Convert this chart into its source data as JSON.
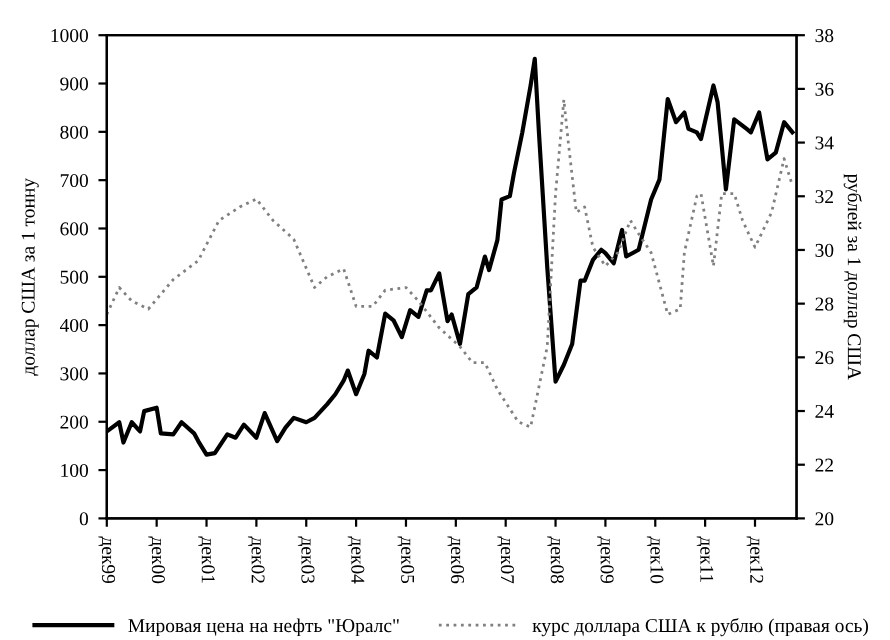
{
  "chart_data": {
    "type": "line",
    "ylabel": "доллар США за 1 тонну",
    "y2label": "рублей за 1 доллар США",
    "xlim": [
      "1999-12",
      "2013-10"
    ],
    "xticks": [
      {
        "value": "1999-12",
        "label": "дек99"
      },
      {
        "value": "2000-12",
        "label": "дек00"
      },
      {
        "value": "2001-12",
        "label": "дек01"
      },
      {
        "value": "2002-12",
        "label": "дек02"
      },
      {
        "value": "2003-12",
        "label": "дек03"
      },
      {
        "value": "2004-12",
        "label": "дек04"
      },
      {
        "value": "2005-12",
        "label": "дек05"
      },
      {
        "value": "2006-12",
        "label": "дек06"
      },
      {
        "value": "2007-12",
        "label": "дек07"
      },
      {
        "value": "2008-12",
        "label": "дек08"
      },
      {
        "value": "2009-12",
        "label": "дек09"
      },
      {
        "value": "2010-12",
        "label": "дек10"
      },
      {
        "value": "2011-12",
        "label": "дек11"
      },
      {
        "value": "2012-12",
        "label": "дек12"
      }
    ],
    "ylim": [
      0,
      1000
    ],
    "yticks": [
      0,
      100,
      200,
      300,
      400,
      500,
      600,
      700,
      800,
      900,
      1000
    ],
    "y2lim": [
      20,
      38
    ],
    "y2ticks": [
      20,
      22,
      24,
      26,
      28,
      30,
      32,
      34,
      36,
      38
    ],
    "grid": false,
    "legend": "bottom",
    "series": [
      {
        "name": "Мировая цена на нефть \"Юралс\"",
        "color": "#000000",
        "line_style": "solid",
        "x": [
          "1999-12",
          "2000-03",
          "2000-04",
          "2000-06",
          "2000-08",
          "2000-09",
          "2000-12",
          "2001-01",
          "2001-04",
          "2001-06",
          "2001-09",
          "2001-10",
          "2001-12",
          "2002-02",
          "2002-05",
          "2002-07",
          "2002-09",
          "2002-12",
          "2003-02",
          "2003-05",
          "2003-07",
          "2003-09",
          "2003-12",
          "2004-02",
          "2004-05",
          "2004-07",
          "2004-09",
          "2004-10",
          "2004-12",
          "2005-02",
          "2005-03",
          "2005-05",
          "2005-07",
          "2005-09",
          "2005-11",
          "2006-01",
          "2006-03",
          "2006-05",
          "2006-06",
          "2006-08",
          "2006-10",
          "2006-11",
          "2007-01",
          "2007-03",
          "2007-05",
          "2007-07",
          "2007-08",
          "2007-10",
          "2007-11",
          "2008-01",
          "2008-02",
          "2008-04",
          "2008-06",
          "2008-07",
          "2008-08",
          "2008-10",
          "2008-12",
          "2009-02",
          "2009-04",
          "2009-06",
          "2009-07",
          "2009-09",
          "2009-11",
          "2009-12",
          "2010-02",
          "2010-04",
          "2010-05",
          "2010-08",
          "2010-11",
          "2011-01",
          "2011-03",
          "2011-05",
          "2011-07",
          "2011-08",
          "2011-10",
          "2011-11",
          "2012-02",
          "2012-03",
          "2012-05",
          "2012-07",
          "2012-10",
          "2012-11",
          "2013-01",
          "2013-03",
          "2013-05",
          "2013-07",
          "2013-09"
        ],
        "values": [
          180,
          199,
          157,
          199,
          180,
          222,
          229,
          176,
          174,
          199,
          176,
          160,
          132,
          135,
          174,
          167,
          194,
          167,
          218,
          160,
          188,
          208,
          199,
          208,
          236,
          257,
          285,
          306,
          257,
          299,
          347,
          333,
          424,
          410,
          375,
          431,
          417,
          472,
          472,
          507,
          408,
          422,
          361,
          464,
          478,
          542,
          514,
          576,
          660,
          667,
          715,
          799,
          896,
          951,
          799,
          520,
          283,
          318,
          361,
          492,
          492,
          535,
          556,
          549,
          528,
          597,
          542,
          556,
          660,
          701,
          868,
          820,
          840,
          806,
          799,
          785,
          896,
          861,
          681,
          826,
          806,
          799,
          840,
          743,
          757,
          820,
          799
        ]
      },
      {
        "name": "курс доллара США к рублю (правая ось)",
        "color": "#808080",
        "line_style": "dotted",
        "axis": "y2",
        "x": [
          "1999-12",
          "2000-03",
          "2000-06",
          "2000-10",
          "2001-04",
          "2001-10",
          "2002-03",
          "2002-08",
          "2002-12",
          "2003-04",
          "2003-09",
          "2004-02",
          "2004-05",
          "2004-09",
          "2004-12",
          "2005-04",
          "2005-07",
          "2005-12",
          "2006-03",
          "2006-08",
          "2007-01",
          "2007-04",
          "2007-07",
          "2007-10",
          "2008-03",
          "2008-06",
          "2008-10",
          "2008-12",
          "2009-02",
          "2009-03",
          "2009-05",
          "2009-07",
          "2009-09",
          "2009-12",
          "2010-03",
          "2010-06",
          "2010-08",
          "2010-11",
          "2011-03",
          "2011-06",
          "2011-07",
          "2011-10",
          "2011-11",
          "2012-02",
          "2012-04",
          "2012-07",
          "2012-09",
          "2012-12",
          "2013-04",
          "2013-07",
          "2013-09"
        ],
        "values": [
          27.6,
          28.6,
          28.1,
          27.8,
          28.9,
          29.6,
          31.1,
          31.6,
          31.9,
          31.1,
          30.4,
          28.6,
          29.0,
          29.3,
          27.9,
          27.9,
          28.5,
          28.6,
          28.1,
          27.1,
          26.4,
          25.8,
          25.8,
          24.8,
          23.6,
          23.4,
          26.4,
          32.1,
          35.6,
          34.1,
          31.4,
          31.6,
          30.1,
          29.4,
          29.9,
          31.1,
          30.6,
          29.9,
          27.6,
          27.8,
          29.9,
          32.0,
          32.1,
          29.4,
          32.1,
          32.1,
          31.1,
          30.1,
          31.4,
          33.4,
          32.4
        ]
      }
    ]
  }
}
